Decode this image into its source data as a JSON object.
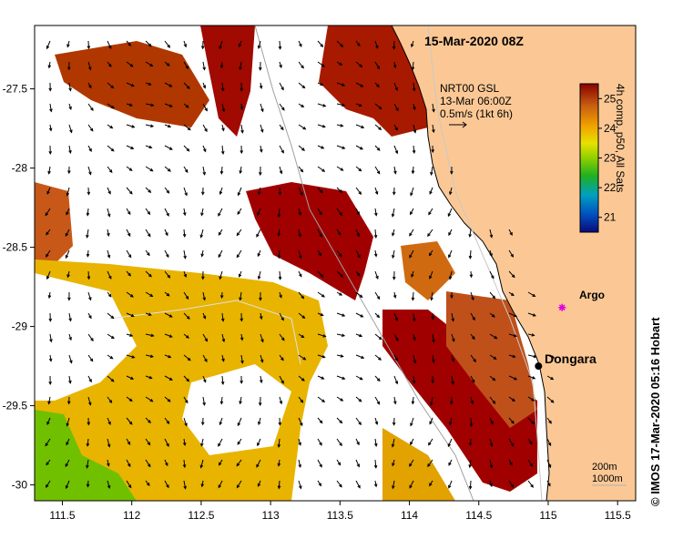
{
  "map": {
    "title": "15-Mar-2020 08Z",
    "current_vectors": {
      "source": "NRT00 GSL",
      "time": "13-Mar 06:00Z",
      "reference": "0.5m/s (1kt 6h)"
    },
    "colorbar": {
      "label": "4h comp, p50, All Sats",
      "ticks": [
        "25",
        "24",
        "23",
        "22",
        "21"
      ],
      "range": [
        20.5,
        25.5
      ]
    },
    "credit": "© IMOS 17-Mar-2020 05:16 Hobart",
    "places": [
      {
        "name": "Dongara",
        "lon": 114.93,
        "lat": -29.25,
        "marker": "black-dot"
      },
      {
        "name": "Argo",
        "lon": 115.1,
        "lat": -28.88,
        "marker": "magenta-star"
      }
    ],
    "isobath_labels": [
      "200m",
      "1000m"
    ],
    "lon_ticks": [
      "111.5",
      "112",
      "112.5",
      "113",
      "113.5",
      "114",
      "114.5",
      "115",
      "115.5"
    ],
    "lat_ticks": [
      "-27.5",
      "-28",
      "-28.5",
      "-29",
      "-29.5",
      "-30"
    ],
    "lon_range": [
      111.3,
      115.63
    ],
    "lat_range": [
      -30.1,
      -27.1
    ],
    "colors": {
      "land": "#fbc895",
      "warm": "#a00000",
      "mid": "#d47a10",
      "cool": "#e8c000"
    }
  }
}
